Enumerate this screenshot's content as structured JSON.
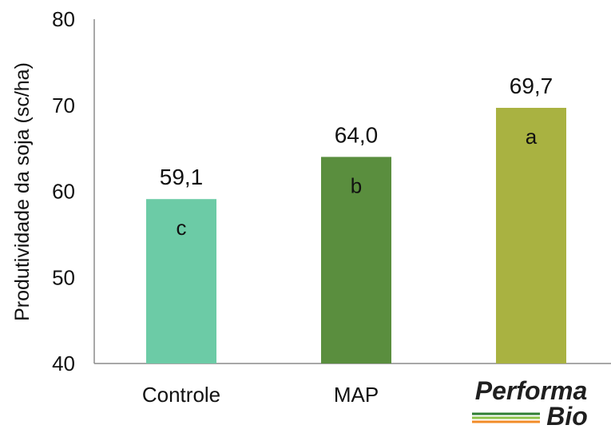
{
  "chart_data": {
    "type": "bar",
    "categories": [
      "Controle",
      "MAP",
      "PerformaBio"
    ],
    "values": [
      59.1,
      64.0,
      69.7
    ],
    "value_labels": [
      "59,1",
      "64,0",
      "69,7"
    ],
    "group_letters": [
      "c",
      "b",
      "a"
    ],
    "bar_colors": [
      "#6ccba6",
      "#5a8e3e",
      "#a9b241"
    ],
    "ylabel": "Produtividade da soja (sc/ha)",
    "xlabel": "",
    "title": "",
    "ylim": [
      40,
      80
    ],
    "yticks": [
      "40",
      "50",
      "60",
      "70",
      "80"
    ],
    "grid": false,
    "legend": "none"
  },
  "logo": {
    "line1": "Performa",
    "line2": "Bio",
    "stripe_colors": [
      "#2e7d32",
      "#8bc34a",
      "#f28c28"
    ]
  }
}
